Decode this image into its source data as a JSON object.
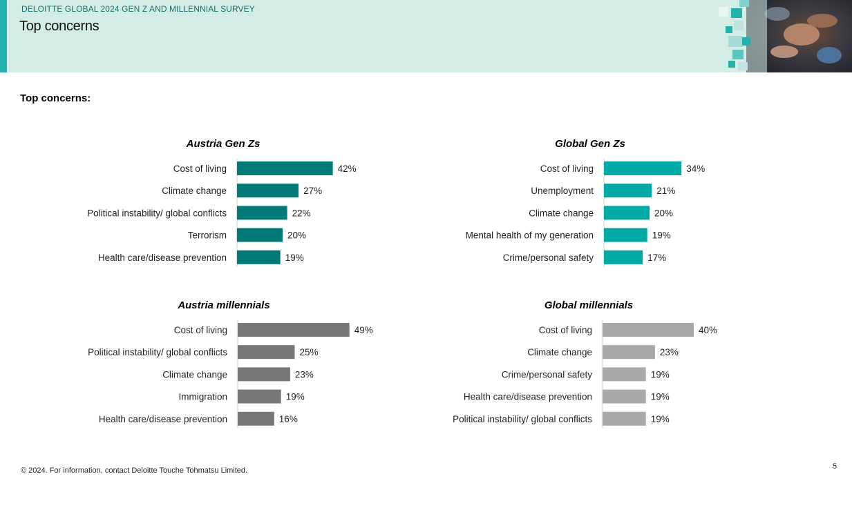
{
  "header": {
    "survey_title": "DELOITTE GLOBAL 2024 GEN Z AND MILLENNIAL SURVEY",
    "page_title": "Top concerns",
    "colors": {
      "band": "#d3ece6",
      "accent": "#1fb3ac"
    }
  },
  "section_title": "Top concerns:",
  "chart_data": [
    {
      "type": "bar",
      "orientation": "horizontal",
      "title": "Austria Gen Zs",
      "categories": [
        "Cost of living",
        "Climate change",
        "Political instability/ global conflicts",
        "Terrorism",
        "Health care/disease prevention"
      ],
      "values": [
        42,
        27,
        22,
        20,
        19
      ],
      "value_labels": [
        "42%",
        "27%",
        "22%",
        "20%",
        "19%"
      ],
      "unit": "%",
      "color": "#007a78"
    },
    {
      "type": "bar",
      "orientation": "horizontal",
      "title": "Global Gen Zs",
      "categories": [
        "Cost of living",
        "Unemployment",
        "Climate change",
        "Mental health of my generation",
        "Crime/personal safety"
      ],
      "values": [
        34,
        21,
        20,
        19,
        17
      ],
      "value_labels": [
        "34%",
        "21%",
        "20%",
        "19%",
        "17%"
      ],
      "unit": "%",
      "color": "#00a9a5"
    },
    {
      "type": "bar",
      "orientation": "horizontal",
      "title": "Austria millennials",
      "categories": [
        "Cost of living",
        "Political instability/ global conflicts",
        "Climate change",
        "Immigration",
        "Health care/disease prevention"
      ],
      "values": [
        49,
        25,
        23,
        19,
        16
      ],
      "value_labels": [
        "49%",
        "25%",
        "23%",
        "19%",
        "16%"
      ],
      "unit": "%",
      "color": "#777777"
    },
    {
      "type": "bar",
      "orientation": "horizontal",
      "title": "Global millennials",
      "categories": [
        "Cost of living",
        "Climate change",
        "Crime/personal safety",
        "Health care/disease prevention",
        "Political instability/ global conflicts"
      ],
      "values": [
        40,
        23,
        19,
        19,
        19
      ],
      "value_labels": [
        "40%",
        "23%",
        "19%",
        "19%",
        "19%"
      ],
      "unit": "%",
      "color": "#a9a9a9"
    }
  ],
  "footer": {
    "copyright": "© 2024. For information, contact Deloitte Touche Tohmatsu Limited.",
    "page_number": "5"
  }
}
